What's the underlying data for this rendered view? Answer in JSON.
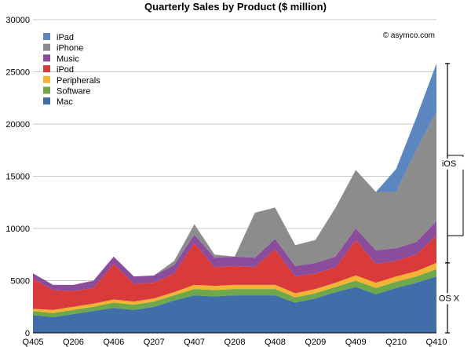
{
  "chart_data": {
    "type": "area",
    "stacked": true,
    "title": "Quarterly Sales by Product ($ million)",
    "credit": "© asymco.com",
    "xlabel": "",
    "ylabel": "",
    "ylim": [
      0,
      30000
    ],
    "yticks": [
      0,
      5000,
      10000,
      15000,
      20000,
      25000,
      30000
    ],
    "ytick_labels": [
      "0",
      "5000",
      "10000",
      "15000",
      "20000",
      "25000",
      "30000"
    ],
    "grid": "horizontal",
    "legend_position": "top-left",
    "quarters": [
      "Q405",
      "Q106",
      "Q206",
      "Q306",
      "Q406",
      "Q107",
      "Q207",
      "Q307",
      "Q407",
      "Q108",
      "Q208",
      "Q308",
      "Q408",
      "Q109",
      "Q209",
      "Q309",
      "Q409",
      "Q110",
      "Q210",
      "Q310",
      "Q410"
    ],
    "xtick_labels": [
      "Q405",
      "Q206",
      "Q406",
      "Q207",
      "Q407",
      "Q208",
      "Q408",
      "Q209",
      "Q409",
      "Q210",
      "Q410"
    ],
    "legend_order": [
      "iPad",
      "iPhone",
      "Music",
      "iPod",
      "Peripherals",
      "Software",
      "Mac"
    ],
    "series": [
      {
        "name": "Mac",
        "color": "#3f6ea8",
        "values": [
          1700,
          1500,
          1800,
          2100,
          2400,
          2200,
          2500,
          3100,
          3600,
          3500,
          3600,
          3600,
          3600,
          2900,
          3300,
          3900,
          4400,
          3700,
          4300,
          4800,
          5400
        ]
      },
      {
        "name": "Software",
        "color": "#6ea84a",
        "values": [
          400,
          400,
          400,
          400,
          500,
          500,
          500,
          500,
          600,
          600,
          600,
          600,
          600,
          500,
          500,
          500,
          600,
          600,
          600,
          600,
          700
        ]
      },
      {
        "name": "Peripherals",
        "color": "#f5b335",
        "values": [
          200,
          300,
          300,
          300,
          300,
          300,
          300,
          300,
          400,
          400,
          400,
          400,
          400,
          400,
          400,
          400,
          500,
          500,
          500,
          500,
          600
        ]
      },
      {
        "name": "iPod",
        "color": "#d93b3b",
        "values": [
          2900,
          1900,
          1500,
          1500,
          3400,
          1700,
          1500,
          1800,
          4000,
          1800,
          1800,
          1700,
          3400,
          1600,
          1500,
          1500,
          3400,
          1800,
          1500,
          1600,
          2600
        ]
      },
      {
        "name": "Music",
        "color": "#8b4c9c",
        "values": [
          500,
          500,
          600,
          700,
          700,
          700,
          700,
          800,
          800,
          900,
          900,
          900,
          1000,
          1000,
          1000,
          1000,
          1100,
          1300,
          1200,
          1200,
          1400
        ]
      },
      {
        "name": "iPhone",
        "color": "#8c8c8c",
        "values": [
          0,
          0,
          0,
          0,
          0,
          0,
          0,
          400,
          1000,
          300,
          0,
          4300,
          3000,
          2000,
          2200,
          4700,
          5600,
          5600,
          5400,
          8800,
          10500
        ]
      },
      {
        "name": "iPad",
        "color": "#5b86c0",
        "values": [
          0,
          0,
          0,
          0,
          0,
          0,
          0,
          0,
          0,
          0,
          0,
          0,
          0,
          0,
          0,
          0,
          0,
          0,
          2200,
          3100,
          4600
        ]
      }
    ],
    "annotations": [
      {
        "label": "iOS",
        "from_series": "iPod",
        "to_series": "iPad",
        "quarter": "Q410"
      },
      {
        "label": "OS X",
        "from_series": "Mac",
        "to_series": "Peripherals",
        "quarter": "Q410"
      }
    ]
  }
}
